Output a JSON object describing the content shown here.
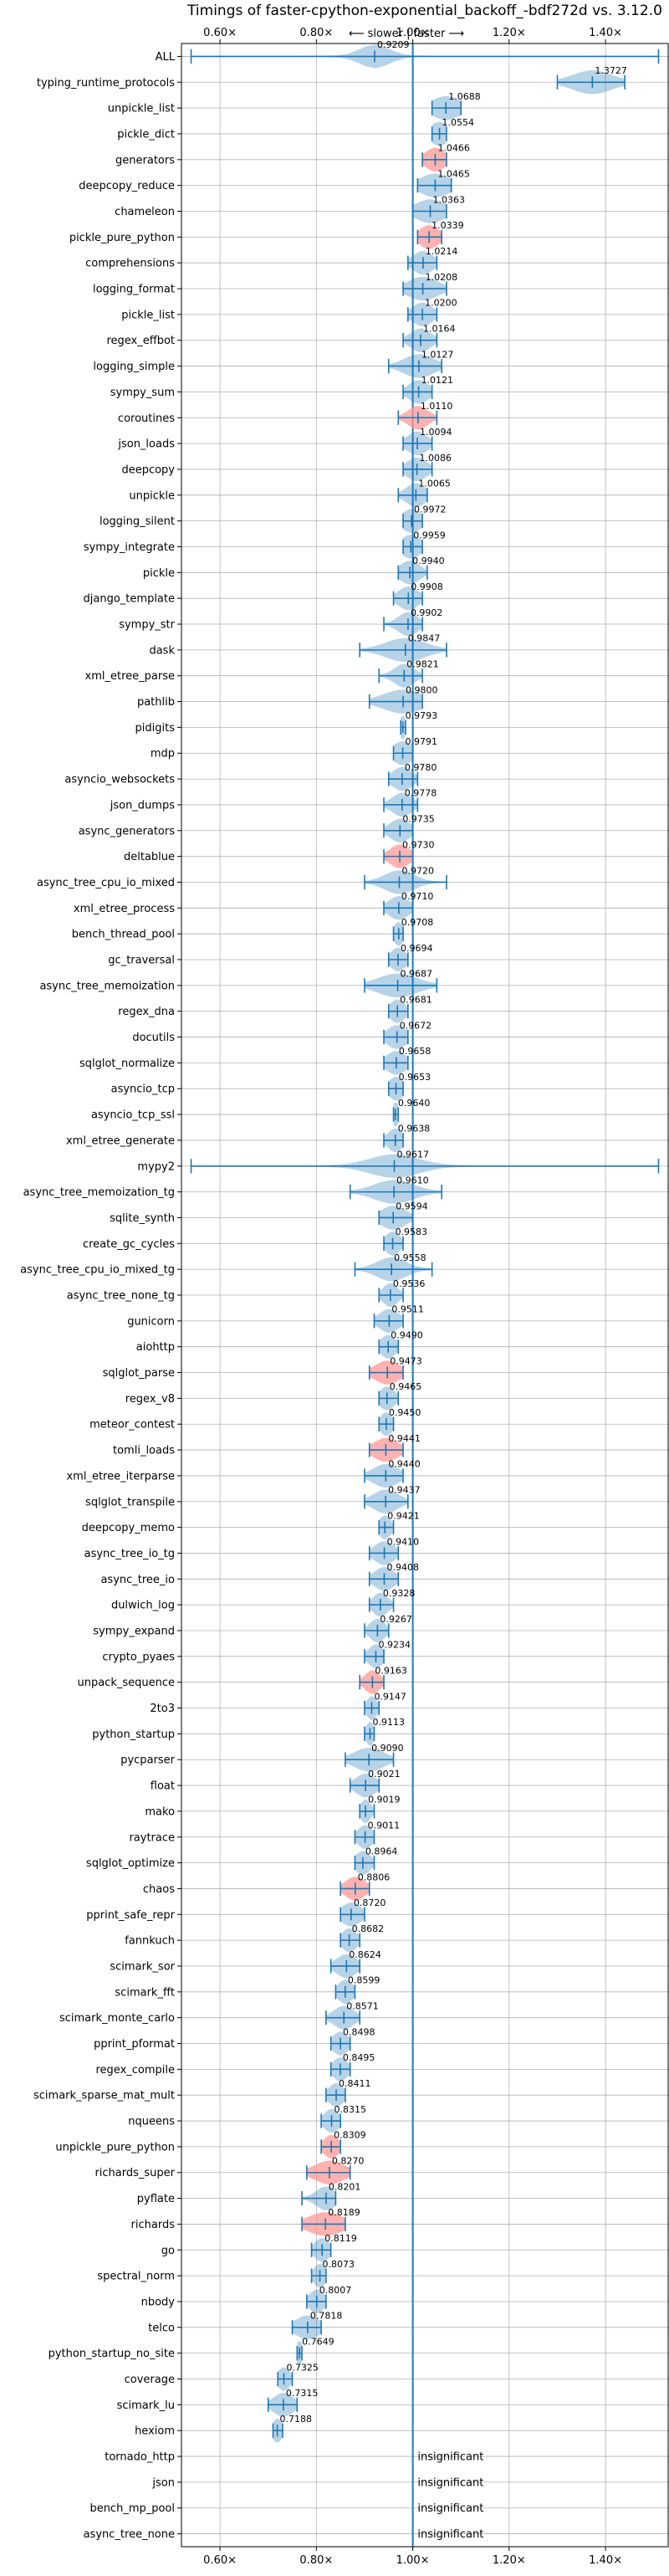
{
  "chart_data": {
    "type": "violin",
    "title": "Timings of faster-cpython-exponential_backoff_-bdf272d vs. 3.12.0",
    "direction_hint": "⟵ slower | faster ⟶",
    "xlim": [
      0.52,
      1.53
    ],
    "xticks": [
      0.6,
      0.8,
      1.0,
      1.2,
      1.4
    ],
    "xtick_labels": [
      "0.60×",
      "0.80×",
      "1.00×",
      "1.20×",
      "1.40×"
    ],
    "reference_line": 1.0,
    "grid": true,
    "colors": {
      "default": "#1f77b4",
      "highlight": "#ff9896",
      "reference": "#1f77b4"
    },
    "insignificant_label": "insignificant",
    "benchmarks": [
      {
        "name": "ALL",
        "value": 0.9209,
        "label": "0.9209",
        "lo": 0.54,
        "hi": 1.51,
        "spread": 0.03,
        "hl": false
      },
      {
        "name": "typing_runtime_protocols",
        "value": 1.3727,
        "label": "1.3727",
        "lo": 1.3,
        "hi": 1.44,
        "spread": 0.04,
        "hl": false
      },
      {
        "name": "unpickle_list",
        "value": 1.0688,
        "label": "1.0688",
        "lo": 1.04,
        "hi": 1.1,
        "spread": 0.03,
        "hl": false
      },
      {
        "name": "pickle_dict",
        "value": 1.0554,
        "label": "1.0554",
        "lo": 1.04,
        "hi": 1.07,
        "spread": 0.02,
        "hl": false
      },
      {
        "name": "generators",
        "value": 1.0466,
        "label": "1.0466",
        "lo": 1.02,
        "hi": 1.07,
        "spread": 0.02,
        "hl": true
      },
      {
        "name": "deepcopy_reduce",
        "value": 1.0465,
        "label": "1.0465",
        "lo": 1.01,
        "hi": 1.08,
        "spread": 0.03,
        "hl": false
      },
      {
        "name": "chameleon",
        "value": 1.0363,
        "label": "1.0363",
        "lo": 1.0,
        "hi": 1.07,
        "spread": 0.03,
        "hl": false
      },
      {
        "name": "pickle_pure_python",
        "value": 1.0339,
        "label": "1.0339",
        "lo": 1.01,
        "hi": 1.06,
        "spread": 0.02,
        "hl": true
      },
      {
        "name": "comprehensions",
        "value": 1.0214,
        "label": "1.0214",
        "lo": 0.99,
        "hi": 1.05,
        "spread": 0.02,
        "hl": false
      },
      {
        "name": "logging_format",
        "value": 1.0208,
        "label": "1.0208",
        "lo": 0.98,
        "hi": 1.07,
        "spread": 0.03,
        "hl": false
      },
      {
        "name": "pickle_list",
        "value": 1.02,
        "label": "1.0200",
        "lo": 0.99,
        "hi": 1.05,
        "spread": 0.02,
        "hl": false
      },
      {
        "name": "regex_effbot",
        "value": 1.0164,
        "label": "1.0164",
        "lo": 0.98,
        "hi": 1.05,
        "spread": 0.02,
        "hl": false
      },
      {
        "name": "logging_simple",
        "value": 1.0127,
        "label": "1.0127",
        "lo": 0.95,
        "hi": 1.06,
        "spread": 0.03,
        "hl": false
      },
      {
        "name": "sympy_sum",
        "value": 1.0121,
        "label": "1.0121",
        "lo": 0.98,
        "hi": 1.04,
        "spread": 0.02,
        "hl": false
      },
      {
        "name": "coroutines",
        "value": 1.011,
        "label": "1.0110",
        "lo": 0.97,
        "hi": 1.05,
        "spread": 0.02,
        "hl": true
      },
      {
        "name": "json_loads",
        "value": 1.0094,
        "label": "1.0094",
        "lo": 0.98,
        "hi": 1.04,
        "spread": 0.02,
        "hl": false
      },
      {
        "name": "deepcopy",
        "value": 1.0086,
        "label": "1.0086",
        "lo": 0.98,
        "hi": 1.04,
        "spread": 0.02,
        "hl": false
      },
      {
        "name": "unpickle",
        "value": 1.0065,
        "label": "1.0065",
        "lo": 0.97,
        "hi": 1.03,
        "spread": 0.02,
        "hl": false
      },
      {
        "name": "logging_silent",
        "value": 0.9972,
        "label": "0.9972",
        "lo": 0.98,
        "hi": 1.02,
        "spread": 0.02,
        "hl": false
      },
      {
        "name": "sympy_integrate",
        "value": 0.9959,
        "label": "0.9959",
        "lo": 0.98,
        "hi": 1.02,
        "spread": 0.02,
        "hl": false
      },
      {
        "name": "pickle",
        "value": 0.994,
        "label": "0.9940",
        "lo": 0.97,
        "hi": 1.03,
        "spread": 0.02,
        "hl": false
      },
      {
        "name": "django_template",
        "value": 0.9908,
        "label": "0.9908",
        "lo": 0.96,
        "hi": 1.02,
        "spread": 0.02,
        "hl": false
      },
      {
        "name": "sympy_str",
        "value": 0.9902,
        "label": "0.9902",
        "lo": 0.94,
        "hi": 1.02,
        "spread": 0.02,
        "hl": false
      },
      {
        "name": "dask",
        "value": 0.9847,
        "label": "0.9847",
        "lo": 0.89,
        "hi": 1.07,
        "spread": 0.04,
        "hl": false
      },
      {
        "name": "xml_etree_parse",
        "value": 0.9821,
        "label": "0.9821",
        "lo": 0.93,
        "hi": 1.02,
        "spread": 0.02,
        "hl": false
      },
      {
        "name": "pathlib",
        "value": 0.98,
        "label": "0.9800",
        "lo": 0.91,
        "hi": 1.02,
        "spread": 0.04,
        "hl": false
      },
      {
        "name": "pidigits",
        "value": 0.9793,
        "label": "0.9793",
        "lo": 0.975,
        "hi": 0.985,
        "spread": 0.006,
        "hl": false
      },
      {
        "name": "mdp",
        "value": 0.9791,
        "label": "0.9791",
        "lo": 0.96,
        "hi": 1.0,
        "spread": 0.02,
        "hl": false
      },
      {
        "name": "asyncio_websockets",
        "value": 0.978,
        "label": "0.9780",
        "lo": 0.95,
        "hi": 1.01,
        "spread": 0.02,
        "hl": false
      },
      {
        "name": "json_dumps",
        "value": 0.9778,
        "label": "0.9778",
        "lo": 0.94,
        "hi": 1.01,
        "spread": 0.02,
        "hl": false
      },
      {
        "name": "async_generators",
        "value": 0.9735,
        "label": "0.9735",
        "lo": 0.94,
        "hi": 1.0,
        "spread": 0.02,
        "hl": false
      },
      {
        "name": "deltablue",
        "value": 0.973,
        "label": "0.9730",
        "lo": 0.94,
        "hi": 1.0,
        "spread": 0.02,
        "hl": true
      },
      {
        "name": "async_tree_cpu_io_mixed",
        "value": 0.972,
        "label": "0.9720",
        "lo": 0.9,
        "hi": 1.07,
        "spread": 0.03,
        "hl": false
      },
      {
        "name": "xml_etree_process",
        "value": 0.971,
        "label": "0.9710",
        "lo": 0.94,
        "hi": 1.0,
        "spread": 0.02,
        "hl": false
      },
      {
        "name": "bench_thread_pool",
        "value": 0.9708,
        "label": "0.9708",
        "lo": 0.96,
        "hi": 0.98,
        "spread": 0.01,
        "hl": false
      },
      {
        "name": "gc_traversal",
        "value": 0.9694,
        "label": "0.9694",
        "lo": 0.95,
        "hi": 0.99,
        "spread": 0.015,
        "hl": false
      },
      {
        "name": "async_tree_memoization",
        "value": 0.9687,
        "label": "0.9687",
        "lo": 0.9,
        "hi": 1.05,
        "spread": 0.04,
        "hl": false
      },
      {
        "name": "regex_dna",
        "value": 0.9681,
        "label": "0.9681",
        "lo": 0.95,
        "hi": 0.99,
        "spread": 0.015,
        "hl": false
      },
      {
        "name": "docutils",
        "value": 0.9672,
        "label": "0.9672",
        "lo": 0.94,
        "hi": 0.99,
        "spread": 0.02,
        "hl": false
      },
      {
        "name": "sqlglot_normalize",
        "value": 0.9658,
        "label": "0.9658",
        "lo": 0.94,
        "hi": 0.99,
        "spread": 0.02,
        "hl": false
      },
      {
        "name": "asyncio_tcp",
        "value": 0.9653,
        "label": "0.9653",
        "lo": 0.95,
        "hi": 0.98,
        "spread": 0.015,
        "hl": false
      },
      {
        "name": "asyncio_tcp_ssl",
        "value": 0.964,
        "label": "0.9640",
        "lo": 0.96,
        "hi": 0.97,
        "spread": 0.008,
        "hl": false
      },
      {
        "name": "xml_etree_generate",
        "value": 0.9638,
        "label": "0.9638",
        "lo": 0.94,
        "hi": 0.98,
        "spread": 0.015,
        "hl": false
      },
      {
        "name": "mypy2",
        "value": 0.9617,
        "label": "0.9617",
        "lo": 0.54,
        "hi": 1.51,
        "spread": 0.05,
        "hl": false
      },
      {
        "name": "async_tree_memoization_tg",
        "value": 0.961,
        "label": "0.9610",
        "lo": 0.87,
        "hi": 1.06,
        "spread": 0.04,
        "hl": false
      },
      {
        "name": "sqlite_synth",
        "value": 0.9594,
        "label": "0.9594",
        "lo": 0.93,
        "hi": 1.0,
        "spread": 0.025,
        "hl": false
      },
      {
        "name": "create_gc_cycles",
        "value": 0.9583,
        "label": "0.9583",
        "lo": 0.94,
        "hi": 0.98,
        "spread": 0.015,
        "hl": false
      },
      {
        "name": "async_tree_cpu_io_mixed_tg",
        "value": 0.9558,
        "label": "0.9558",
        "lo": 0.88,
        "hi": 1.04,
        "spread": 0.03,
        "hl": false
      },
      {
        "name": "async_tree_none_tg",
        "value": 0.9536,
        "label": "0.9536",
        "lo": 0.93,
        "hi": 0.98,
        "spread": 0.015,
        "hl": false
      },
      {
        "name": "gunicorn",
        "value": 0.9511,
        "label": "0.9511",
        "lo": 0.92,
        "hi": 0.98,
        "spread": 0.02,
        "hl": false
      },
      {
        "name": "aiohttp",
        "value": 0.949,
        "label": "0.9490",
        "lo": 0.93,
        "hi": 0.97,
        "spread": 0.015,
        "hl": false
      },
      {
        "name": "sqlglot_parse",
        "value": 0.9473,
        "label": "0.9473",
        "lo": 0.91,
        "hi": 0.98,
        "spread": 0.025,
        "hl": true
      },
      {
        "name": "regex_v8",
        "value": 0.9465,
        "label": "0.9465",
        "lo": 0.93,
        "hi": 0.97,
        "spread": 0.015,
        "hl": false
      },
      {
        "name": "meteor_contest",
        "value": 0.945,
        "label": "0.9450",
        "lo": 0.93,
        "hi": 0.96,
        "spread": 0.012,
        "hl": false
      },
      {
        "name": "tomli_loads",
        "value": 0.9441,
        "label": "0.9441",
        "lo": 0.91,
        "hi": 0.98,
        "spread": 0.025,
        "hl": true
      },
      {
        "name": "xml_etree_iterparse",
        "value": 0.944,
        "label": "0.9440",
        "lo": 0.9,
        "hi": 0.98,
        "spread": 0.025,
        "hl": false
      },
      {
        "name": "sqlglot_transpile",
        "value": 0.9437,
        "label": "0.9437",
        "lo": 0.9,
        "hi": 0.99,
        "spread": 0.025,
        "hl": false
      },
      {
        "name": "deepcopy_memo",
        "value": 0.9421,
        "label": "0.9421",
        "lo": 0.93,
        "hi": 0.96,
        "spread": 0.012,
        "hl": false
      },
      {
        "name": "async_tree_io_tg",
        "value": 0.941,
        "label": "0.9410",
        "lo": 0.91,
        "hi": 0.97,
        "spread": 0.02,
        "hl": false
      },
      {
        "name": "async_tree_io",
        "value": 0.9408,
        "label": "0.9408",
        "lo": 0.91,
        "hi": 0.97,
        "spread": 0.02,
        "hl": false
      },
      {
        "name": "dulwich_log",
        "value": 0.9328,
        "label": "0.9328",
        "lo": 0.91,
        "hi": 0.96,
        "spread": 0.015,
        "hl": false
      },
      {
        "name": "sympy_expand",
        "value": 0.9267,
        "label": "0.9267",
        "lo": 0.9,
        "hi": 0.95,
        "spread": 0.015,
        "hl": false
      },
      {
        "name": "crypto_pyaes",
        "value": 0.9234,
        "label": "0.9234",
        "lo": 0.9,
        "hi": 0.94,
        "spread": 0.015,
        "hl": false
      },
      {
        "name": "unpack_sequence",
        "value": 0.9163,
        "label": "0.9163",
        "lo": 0.89,
        "hi": 0.94,
        "spread": 0.015,
        "hl": true
      },
      {
        "name": "2to3",
        "value": 0.9147,
        "label": "0.9147",
        "lo": 0.9,
        "hi": 0.93,
        "spread": 0.01,
        "hl": false
      },
      {
        "name": "python_startup",
        "value": 0.9113,
        "label": "0.9113",
        "lo": 0.9,
        "hi": 0.92,
        "spread": 0.008,
        "hl": false
      },
      {
        "name": "pycparser",
        "value": 0.909,
        "label": "0.9090",
        "lo": 0.86,
        "hi": 0.96,
        "spread": 0.03,
        "hl": false
      },
      {
        "name": "float",
        "value": 0.9021,
        "label": "0.9021",
        "lo": 0.87,
        "hi": 0.93,
        "spread": 0.02,
        "hl": false
      },
      {
        "name": "mako",
        "value": 0.9019,
        "label": "0.9019",
        "lo": 0.89,
        "hi": 0.92,
        "spread": 0.01,
        "hl": false
      },
      {
        "name": "raytrace",
        "value": 0.9011,
        "label": "0.9011",
        "lo": 0.88,
        "hi": 0.92,
        "spread": 0.015,
        "hl": false
      },
      {
        "name": "sqlglot_optimize",
        "value": 0.8964,
        "label": "0.8964",
        "lo": 0.88,
        "hi": 0.92,
        "spread": 0.015,
        "hl": false
      },
      {
        "name": "chaos",
        "value": 0.8806,
        "label": "0.8806",
        "lo": 0.85,
        "hi": 0.91,
        "spread": 0.02,
        "hl": true
      },
      {
        "name": "pprint_safe_repr",
        "value": 0.872,
        "label": "0.8720",
        "lo": 0.85,
        "hi": 0.9,
        "spread": 0.02,
        "hl": false
      },
      {
        "name": "fannkuch",
        "value": 0.8682,
        "label": "0.8682",
        "lo": 0.85,
        "hi": 0.89,
        "spread": 0.015,
        "hl": false
      },
      {
        "name": "scimark_sor",
        "value": 0.8624,
        "label": "0.8624",
        "lo": 0.83,
        "hi": 0.89,
        "spread": 0.02,
        "hl": false
      },
      {
        "name": "scimark_fft",
        "value": 0.8599,
        "label": "0.8599",
        "lo": 0.84,
        "hi": 0.88,
        "spread": 0.015,
        "hl": false
      },
      {
        "name": "scimark_monte_carlo",
        "value": 0.8571,
        "label": "0.8571",
        "lo": 0.82,
        "hi": 0.89,
        "spread": 0.02,
        "hl": false
      },
      {
        "name": "pprint_pformat",
        "value": 0.8498,
        "label": "0.8498",
        "lo": 0.83,
        "hi": 0.87,
        "spread": 0.015,
        "hl": false
      },
      {
        "name": "regex_compile",
        "value": 0.8495,
        "label": "0.8495",
        "lo": 0.83,
        "hi": 0.87,
        "spread": 0.015,
        "hl": false
      },
      {
        "name": "scimark_sparse_mat_mult",
        "value": 0.8411,
        "label": "0.8411",
        "lo": 0.82,
        "hi": 0.86,
        "spread": 0.015,
        "hl": false
      },
      {
        "name": "nqueens",
        "value": 0.8315,
        "label": "0.8315",
        "lo": 0.81,
        "hi": 0.85,
        "spread": 0.015,
        "hl": false
      },
      {
        "name": "unpickle_pure_python",
        "value": 0.8309,
        "label": "0.8309",
        "lo": 0.81,
        "hi": 0.85,
        "spread": 0.015,
        "hl": true
      },
      {
        "name": "richards_super",
        "value": 0.827,
        "label": "0.8270",
        "lo": 0.78,
        "hi": 0.87,
        "spread": 0.03,
        "hl": true
      },
      {
        "name": "pyflate",
        "value": 0.8201,
        "label": "0.8201",
        "lo": 0.77,
        "hi": 0.84,
        "spread": 0.02,
        "hl": false
      },
      {
        "name": "richards",
        "value": 0.8189,
        "label": "0.8189",
        "lo": 0.77,
        "hi": 0.86,
        "spread": 0.035,
        "hl": true
      },
      {
        "name": "go",
        "value": 0.8119,
        "label": "0.8119",
        "lo": 0.79,
        "hi": 0.83,
        "spread": 0.015,
        "hl": false
      },
      {
        "name": "spectral_norm",
        "value": 0.8073,
        "label": "0.8073",
        "lo": 0.79,
        "hi": 0.82,
        "spread": 0.012,
        "hl": false
      },
      {
        "name": "nbody",
        "value": 0.8007,
        "label": "0.8007",
        "lo": 0.78,
        "hi": 0.82,
        "spread": 0.015,
        "hl": false
      },
      {
        "name": "telco",
        "value": 0.7818,
        "label": "0.7818",
        "lo": 0.75,
        "hi": 0.81,
        "spread": 0.025,
        "hl": false
      },
      {
        "name": "python_startup_no_site",
        "value": 0.7649,
        "label": "0.7649",
        "lo": 0.76,
        "hi": 0.77,
        "spread": 0.008,
        "hl": false
      },
      {
        "name": "coverage",
        "value": 0.7325,
        "label": "0.7325",
        "lo": 0.72,
        "hi": 0.75,
        "spread": 0.012,
        "hl": false
      },
      {
        "name": "scimark_lu",
        "value": 0.7315,
        "label": "0.7315",
        "lo": 0.7,
        "hi": 0.76,
        "spread": 0.02,
        "hl": false
      },
      {
        "name": "hexiom",
        "value": 0.7188,
        "label": "0.7188",
        "lo": 0.71,
        "hi": 0.73,
        "spread": 0.01,
        "hl": false
      },
      {
        "name": "tornado_http",
        "insignificant": true
      },
      {
        "name": "json",
        "insignificant": true
      },
      {
        "name": "bench_mp_pool",
        "insignificant": true
      },
      {
        "name": "async_tree_none",
        "insignificant": true
      }
    ]
  }
}
